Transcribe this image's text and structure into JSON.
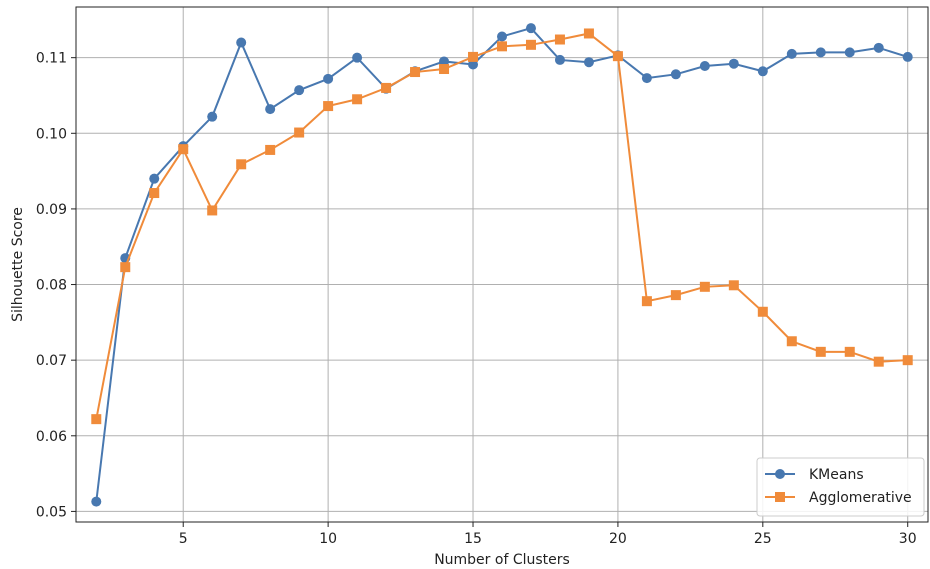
{
  "chart_data": {
    "type": "line",
    "title": "",
    "xlabel": "Number of Clusters",
    "ylabel": "Silhouette Score",
    "xlim": [
      1.3,
      30.7
    ],
    "ylim": [
      0.0486,
      0.1167
    ],
    "xticks": [
      5,
      10,
      15,
      20,
      25,
      30
    ],
    "yticks": [
      0.05,
      0.06,
      0.07,
      0.08,
      0.09,
      0.1,
      0.11
    ],
    "ytick_labels": [
      "0.05",
      "0.06",
      "0.07",
      "0.08",
      "0.09",
      "0.10",
      "0.11"
    ],
    "grid": true,
    "legend_position": "lower-right",
    "x": [
      2,
      3,
      4,
      5,
      6,
      7,
      8,
      9,
      10,
      11,
      12,
      13,
      14,
      15,
      16,
      17,
      18,
      19,
      20,
      21,
      22,
      23,
      24,
      25,
      26,
      27,
      28,
      29,
      30
    ],
    "series": [
      {
        "name": "KMeans",
        "color": "#4878b0",
        "marker": "circle",
        "values": [
          0.0513,
          0.0835,
          0.094,
          0.0983,
          0.1022,
          0.112,
          0.1032,
          0.1057,
          0.1072,
          0.11,
          0.1059,
          0.1082,
          0.1095,
          0.1091,
          0.1128,
          0.1139,
          0.1097,
          0.1094,
          0.1103,
          0.1073,
          0.1078,
          0.1089,
          0.1092,
          0.1082,
          0.1105,
          0.1107,
          0.1107,
          0.1113,
          0.1101
        ]
      },
      {
        "name": "Agglomerative",
        "color": "#f08b3a",
        "marker": "square",
        "values": [
          0.0622,
          0.0823,
          0.0921,
          0.0979,
          0.0898,
          0.0959,
          0.0978,
          0.1001,
          0.1036,
          0.1045,
          0.106,
          0.1081,
          0.1085,
          0.1101,
          0.1115,
          0.1117,
          0.1124,
          0.1132,
          0.1102,
          0.0778,
          0.0786,
          0.0797,
          0.0799,
          0.0764,
          0.0725,
          0.0711,
          0.0711,
          0.0698,
          0.07
        ]
      }
    ]
  }
}
